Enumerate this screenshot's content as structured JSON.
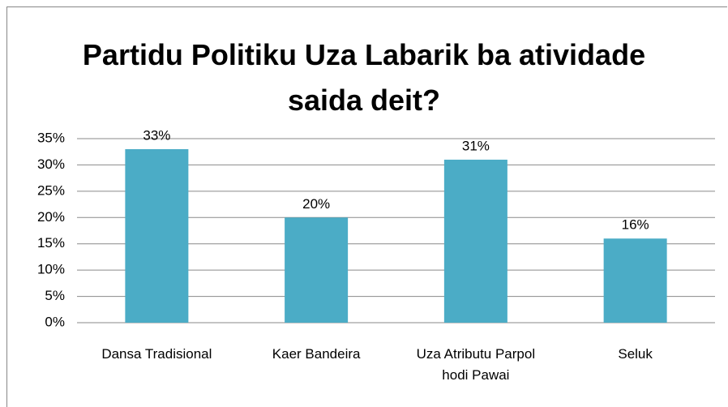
{
  "chart_data": {
    "type": "bar",
    "title": "Partidu Politiku Uza Labarik ba atividade saida deit?",
    "categories": [
      "Dansa Tradisional",
      "Kaer Bandeira",
      "Uza Atributu Parpol hodi Pawai",
      "Seluk"
    ],
    "values": [
      33,
      20,
      31,
      16
    ],
    "value_labels": [
      "33%",
      "20%",
      "31%",
      "16%"
    ],
    "color": "#4bacc6",
    "ylim": [
      0,
      35
    ],
    "yticks": [
      {
        "value": 0,
        "label": "0%"
      },
      {
        "value": 5,
        "label": "5%"
      },
      {
        "value": 10,
        "label": "10%"
      },
      {
        "value": 15,
        "label": "15%"
      },
      {
        "value": 20,
        "label": "20%"
      },
      {
        "value": 25,
        "label": "25%"
      },
      {
        "value": 30,
        "label": "30%"
      },
      {
        "value": 35,
        "label": "35%"
      }
    ],
    "grid": true
  }
}
